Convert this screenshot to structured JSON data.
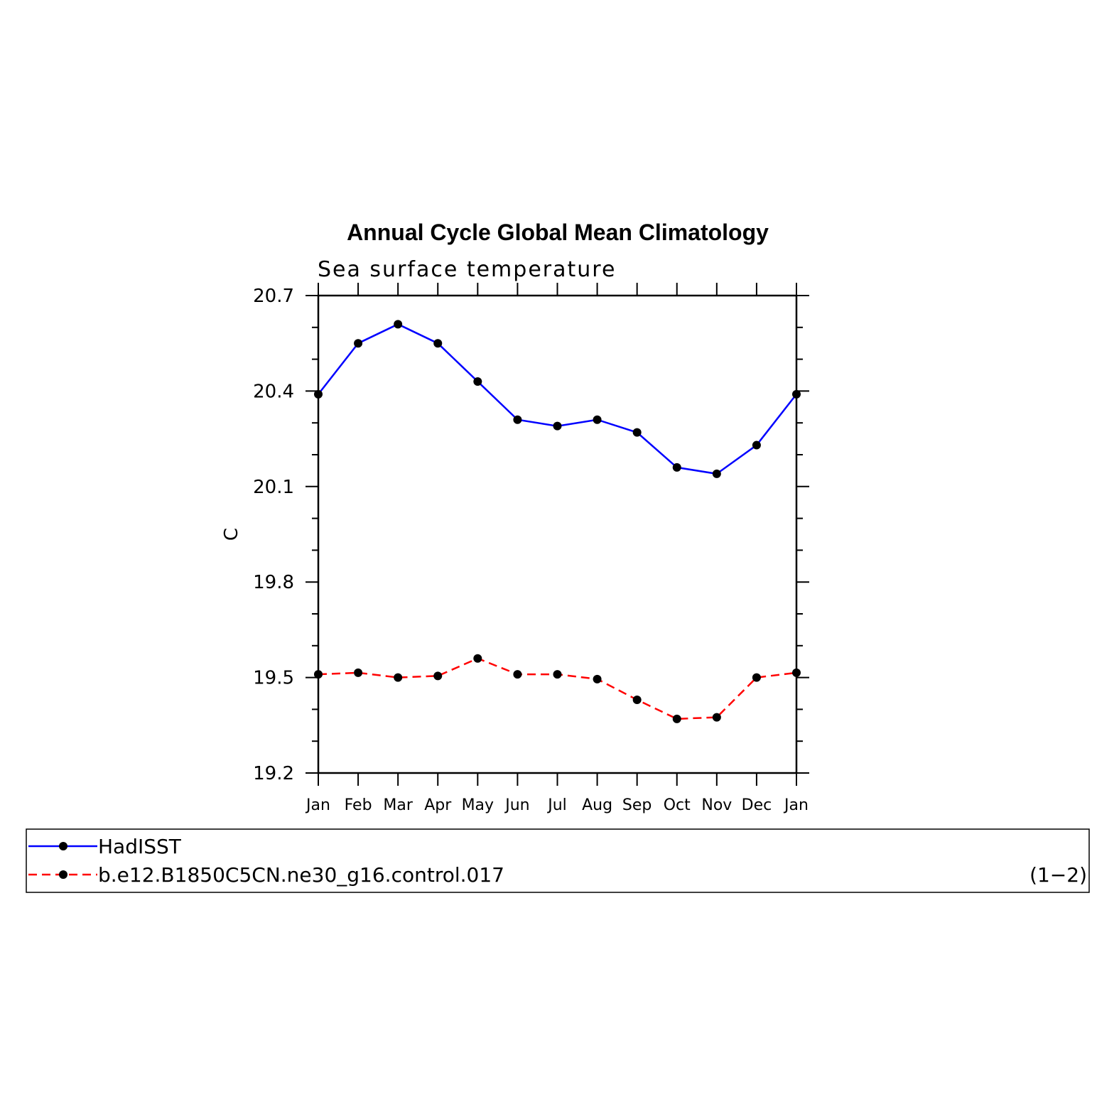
{
  "chart_data": {
    "type": "line",
    "title": "Annual Cycle Global Mean Climatology",
    "subtitle": "Sea surface temperature",
    "xlabel": "",
    "ylabel": "C",
    "categories": [
      "Jan",
      "Feb",
      "Mar",
      "Apr",
      "May",
      "Jun",
      "Jul",
      "Aug",
      "Sep",
      "Oct",
      "Nov",
      "Dec",
      "Jan"
    ],
    "ylim": [
      19.2,
      20.7
    ],
    "yticks": [
      "20.7",
      "20.4",
      "20.1",
      "19.8",
      "19.5",
      "19.2"
    ],
    "series": [
      {
        "name": "HadISST",
        "color": "#0000ff",
        "line_style": "solid",
        "marker": "filled-circle",
        "values": [
          20.39,
          20.55,
          20.61,
          20.55,
          20.43,
          20.31,
          20.29,
          20.31,
          20.27,
          20.16,
          20.14,
          20.23,
          20.39
        ]
      },
      {
        "name": "b.e12.B1850C5CN.ne30_g16.control.017",
        "color": "#ff0000",
        "line_style": "dashed",
        "marker": "filled-circle",
        "values": [
          19.51,
          19.515,
          19.5,
          19.505,
          19.56,
          19.51,
          19.51,
          19.495,
          19.43,
          19.37,
          19.375,
          19.5,
          19.515
        ]
      }
    ],
    "legend": {
      "placement": "bottom",
      "panel_label": "(1−2)"
    },
    "grid": false
  }
}
